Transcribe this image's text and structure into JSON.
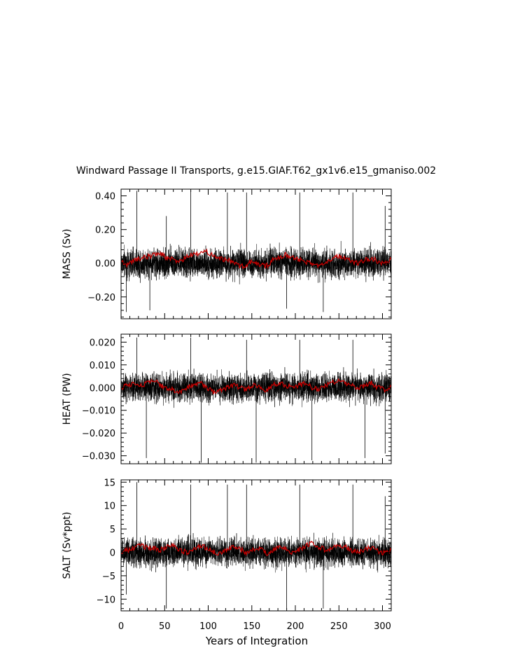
{
  "chart_data": {
    "type": "line",
    "title": "Windward Passage II Transports, g.e15.GIAF.T62_gx1v6.e15_gmaniso.002",
    "xlabel": "Years of Integration",
    "xlim": [
      0,
      310
    ],
    "xticks": [
      "0",
      "50",
      "100",
      "150",
      "200",
      "250",
      "300"
    ],
    "xtick_values": [
      0,
      50,
      100,
      150,
      200,
      250,
      300
    ],
    "colors": {
      "monthly": "#000000",
      "annual": "#cc0000"
    },
    "panels": [
      {
        "ylabel": "MASS (Sv)",
        "ylim": [
          -0.33,
          0.44
        ],
        "yticks": [
          "0.40",
          "0.20",
          "0.00",
          "−0.20"
        ],
        "ytick_values": [
          0.4,
          0.2,
          0.0,
          -0.2
        ],
        "noise_amplitude": 0.09,
        "spikes": [
          {
            "x": 18,
            "y": 0.43
          },
          {
            "x": 52,
            "y": 0.28
          },
          {
            "x": 80,
            "y": 0.43
          },
          {
            "x": 122,
            "y": 0.42
          },
          {
            "x": 144,
            "y": 0.42
          },
          {
            "x": 205,
            "y": 0.42
          },
          {
            "x": 266,
            "y": 0.42
          },
          {
            "x": 303,
            "y": 0.34
          },
          {
            "x": 6,
            "y": -0.29
          },
          {
            "x": 33,
            "y": -0.28
          },
          {
            "x": 190,
            "y": -0.27
          },
          {
            "x": 232,
            "y": -0.29
          }
        ],
        "series": [
          {
            "name": "",
            "values": [
              0.01,
              -0.01,
              0.02,
              0.03,
              0.04,
              0.05,
              0.06,
              0.03,
              0.02,
              0.01,
              0.04,
              0.05,
              0.06,
              0.07,
              0.05,
              0.03,
              0.02,
              0.01,
              -0.02,
              -0.01,
              0.01,
              -0.01,
              -0.02,
              0.02,
              0.03,
              0.05,
              0.04,
              0.02,
              0.01,
              -0.01,
              -0.01,
              0.01,
              0.03,
              0.04,
              0.03,
              0.01,
              0.0,
              0.02,
              0.03,
              0.01,
              0.0,
              0.02
            ]
          }
        ]
      },
      {
        "ylabel": "HEAT (PW)",
        "ylim": [
          -0.0335,
          0.0235
        ],
        "yticks": [
          "0.020",
          "0.010",
          "0.000",
          "−0.010",
          "−0.020",
          "−0.030"
        ],
        "ytick_values": [
          0.02,
          0.01,
          0.0,
          -0.01,
          -0.02,
          -0.03
        ],
        "noise_amplitude": 0.0065,
        "spikes": [
          {
            "x": 18,
            "y": 0.022
          },
          {
            "x": 80,
            "y": 0.022
          },
          {
            "x": 144,
            "y": 0.021
          },
          {
            "x": 205,
            "y": 0.021
          },
          {
            "x": 266,
            "y": 0.021
          },
          {
            "x": 29,
            "y": -0.031
          },
          {
            "x": 92,
            "y": -0.033
          },
          {
            "x": 155,
            "y": -0.033
          },
          {
            "x": 219,
            "y": -0.032
          },
          {
            "x": 280,
            "y": -0.031
          },
          {
            "x": 303,
            "y": -0.029
          }
        ],
        "series": [
          {
            "name": "",
            "values": [
              0.0,
              0.001,
              0.002,
              0.001,
              0.002,
              0.003,
              0.001,
              0.0,
              -0.001,
              -0.002,
              0.0,
              0.001,
              0.002,
              0.0,
              -0.002,
              -0.001,
              0.0,
              0.001,
              0.0,
              -0.001,
              0.001,
              0.0,
              -0.001,
              0.001,
              0.002,
              0.001,
              0.0,
              0.001,
              0.002,
              0.0,
              -0.001,
              0.001,
              0.002,
              0.003,
              0.002,
              0.001,
              0.0,
              0.001,
              0.002,
              0.0,
              -0.001,
              0.0
            ]
          }
        ]
      },
      {
        "ylabel": "SALT (Sv*ppt)",
        "ylim": [
          -12.5,
          15.5
        ],
        "yticks": [
          "15",
          "10",
          "5",
          "0",
          "−5",
          "−10"
        ],
        "ytick_values": [
          15,
          10,
          5,
          0,
          -5,
          -10
        ],
        "noise_amplitude": 3.2,
        "spikes": [
          {
            "x": 18,
            "y": 15
          },
          {
            "x": 80,
            "y": 14.5
          },
          {
            "x": 122,
            "y": 14.5
          },
          {
            "x": 144,
            "y": 14.5
          },
          {
            "x": 205,
            "y": 14.5
          },
          {
            "x": 266,
            "y": 14.5
          },
          {
            "x": 303,
            "y": 12
          },
          {
            "x": 6,
            "y": -9
          },
          {
            "x": 52,
            "y": -12
          },
          {
            "x": 190,
            "y": -12
          },
          {
            "x": 232,
            "y": -12
          }
        ],
        "series": [
          {
            "name": "",
            "values": [
              0.0,
              0.5,
              1.0,
              1.5,
              1.0,
              0.8,
              0.5,
              1.2,
              1.5,
              0.5,
              0.0,
              0.8,
              1.5,
              1.0,
              0.2,
              -0.2,
              0.5,
              1.0,
              0.8,
              0.0,
              0.5,
              1.0,
              -0.3,
              0.5,
              1.0,
              0.8,
              0.0,
              0.5,
              1.5,
              2.0,
              1.2,
              0.5,
              1.0,
              1.5,
              1.2,
              0.5,
              0.0,
              0.8,
              1.0,
              0.2,
              -0.2,
              0.5
            ]
          }
        ]
      }
    ]
  }
}
